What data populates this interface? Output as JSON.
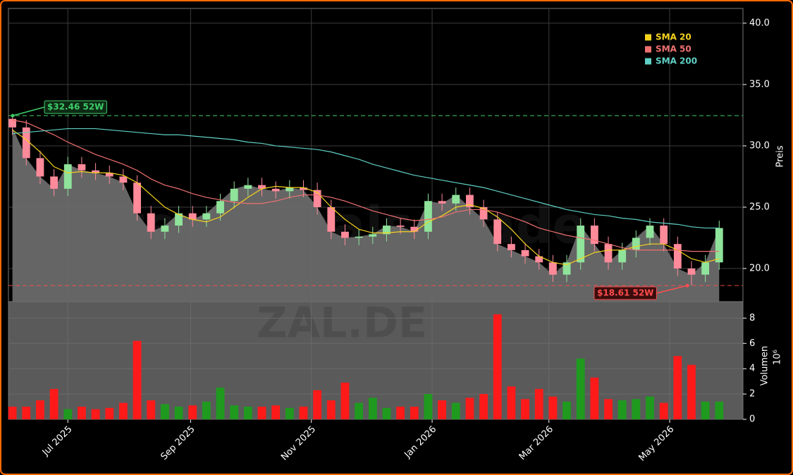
{
  "chart_data": [
    {
      "type": "candlestick",
      "watermark": "forexsignals.trade",
      "ylabel": "Preis",
      "x": [
        2,
        9,
        16,
        23,
        30,
        37,
        44,
        51,
        58,
        65,
        72,
        79,
        86,
        93,
        100,
        107,
        114,
        121,
        128,
        135,
        142,
        149,
        156,
        163,
        170,
        177,
        184,
        191,
        198,
        205,
        212,
        219,
        226,
        233,
        240,
        247,
        254,
        261,
        268,
        275,
        282,
        289,
        296,
        303,
        310,
        317,
        324,
        331,
        338,
        345,
        352,
        359
      ],
      "open": [
        32.2,
        31.5,
        29,
        27.5,
        26.5,
        28.5,
        28,
        27.8,
        27.5,
        27,
        24.5,
        23,
        23.5,
        24.5,
        24,
        24.5,
        25.5,
        26.5,
        26.8,
        26.5,
        26.3,
        26.6,
        26.4,
        25,
        23,
        22.5,
        22.6,
        22.8,
        23.5,
        23.4,
        23,
        25.5,
        25.3,
        26,
        25,
        24,
        22,
        21.5,
        21,
        20.5,
        19.5,
        20.5,
        23.5,
        22,
        20.5,
        21.5,
        22.5,
        23.5,
        22,
        20,
        19.5,
        20.5
      ],
      "high": [
        32.46,
        32.1,
        29.6,
        28.1,
        29.1,
        29.1,
        28.6,
        28.4,
        28.1,
        27.6,
        25.1,
        24.1,
        25.1,
        25.1,
        25.1,
        26.1,
        27.1,
        27.4,
        27.4,
        27.1,
        27.2,
        27.2,
        27,
        25.6,
        23.6,
        23.2,
        23.4,
        24.1,
        24.1,
        24,
        26.1,
        26.1,
        26.6,
        26.6,
        25.6,
        24.6,
        22.6,
        22.1,
        21.6,
        21.1,
        21.1,
        24.1,
        24.1,
        22.6,
        22.1,
        23.1,
        24.1,
        24.1,
        22.6,
        20.6,
        21.1,
        23.9
      ],
      "low": [
        30.9,
        28.4,
        26.9,
        25.9,
        25.9,
        27.4,
        27.2,
        26.9,
        26.4,
        23.9,
        22.4,
        22.4,
        22.9,
        23.4,
        23.4,
        23.9,
        24.9,
        25.9,
        25.9,
        25.7,
        25.7,
        25.8,
        24.4,
        22.4,
        21.9,
        21.9,
        22,
        22.2,
        22.8,
        22.4,
        22.4,
        24.7,
        24.7,
        24.4,
        23.4,
        21.4,
        20.9,
        20.4,
        19.9,
        18.9,
        18.9,
        19.9,
        21.4,
        19.9,
        19.9,
        20.9,
        21.9,
        21.4,
        19.4,
        18.61,
        18.9,
        19.9
      ],
      "close": [
        31.5,
        29,
        27.5,
        26.5,
        28.5,
        28,
        27.8,
        27.5,
        27,
        24.5,
        23,
        23.5,
        24.5,
        24,
        24.5,
        25.5,
        26.5,
        26.8,
        26.5,
        26.3,
        26.6,
        26.4,
        25,
        23,
        22.5,
        22.6,
        22.8,
        23.5,
        23.4,
        23,
        25.5,
        25.3,
        26,
        25,
        24,
        22,
        21.5,
        21,
        20.5,
        19.5,
        20.5,
        23.5,
        22,
        20.5,
        21.5,
        22.5,
        23.5,
        22,
        20,
        19.5,
        20.5,
        23.3
      ],
      "up_color": "#8fe39a",
      "down_color": "#ff8a9a",
      "area_color": "#6a6a6a",
      "series": [
        {
          "name": "SMA 20",
          "color": "#f5d21e",
          "values": [
            31.3,
            30.5,
            29.5,
            28.3,
            27.8,
            27.9,
            27.8,
            27.8,
            27.6,
            27,
            26,
            25,
            24.4,
            24,
            23.8,
            24.2,
            25,
            25.8,
            26.5,
            26.7,
            26.6,
            26.6,
            26.2,
            25,
            24,
            23.2,
            22.9,
            22.9,
            23,
            23,
            23.8,
            24.3,
            25,
            25.2,
            24.9,
            24.2,
            23.2,
            22,
            21,
            20.5,
            20.3,
            20.8,
            21.3,
            21.5,
            21.5,
            21.8,
            22,
            22,
            21.5,
            20.8,
            20.5,
            20.8
          ]
        },
        {
          "name": "SMA 50",
          "color": "#f07070",
          "values": [
            32.1,
            31.9,
            31.4,
            30.9,
            30.3,
            29.8,
            29.3,
            28.9,
            28.5,
            28,
            27.3,
            26.8,
            26.5,
            26.1,
            25.8,
            25.6,
            25.4,
            25.3,
            25.3,
            25.5,
            25.8,
            26,
            26,
            25.8,
            25.5,
            25.1,
            24.7,
            24.4,
            24.1,
            23.9,
            24,
            24.2,
            24.6,
            24.8,
            24.8,
            24.6,
            24.2,
            23.8,
            23.3,
            23,
            22.7,
            22.5,
            22.3,
            22,
            21.7,
            21.5,
            21.5,
            21.5,
            21.5,
            21.4,
            21.4,
            21.4
          ]
        },
        {
          "name": "SMA 200",
          "color": "#5fd0c4",
          "values": [
            31,
            31.1,
            31.2,
            31.3,
            31.4,
            31.4,
            31.4,
            31.3,
            31.2,
            31.1,
            31,
            30.9,
            30.9,
            30.8,
            30.7,
            30.6,
            30.5,
            30.3,
            30.2,
            30,
            29.9,
            29.8,
            29.7,
            29.5,
            29.2,
            28.9,
            28.5,
            28.2,
            27.9,
            27.6,
            27.4,
            27.2,
            27,
            26.8,
            26.6,
            26.3,
            26,
            25.7,
            25.4,
            25.1,
            24.8,
            24.6,
            24.4,
            24.3,
            24.1,
            24,
            23.8,
            23.7,
            23.6,
            23.4,
            23.3,
            23.3
          ]
        }
      ],
      "annotations": [
        {
          "value": 32.46,
          "label": "$32.46 52W",
          "color": "#3ecf6a"
        },
        {
          "value": 18.61,
          "label": "$18.61 52W",
          "color": "#ff4d4d"
        }
      ],
      "xlim": [
        0,
        371
      ],
      "xticks": [
        {
          "value": 30,
          "label": "Jul 2025"
        },
        {
          "value": 92,
          "label": "Sep 2025"
        },
        {
          "value": 153,
          "label": "Nov 2025"
        },
        {
          "value": 214,
          "label": "Jan 2026"
        },
        {
          "value": 273,
          "label": "Mar 2026"
        },
        {
          "value": 334,
          "label": "May 2026"
        }
      ],
      "ylim": [
        17.3,
        41.2
      ],
      "yticks": [
        {
          "value": 20,
          "label": "20.0"
        },
        {
          "value": 25,
          "label": "25.0"
        },
        {
          "value": 30,
          "label": "30.0"
        },
        {
          "value": 35,
          "label": "35.0"
        },
        {
          "value": 40,
          "label": "40.0"
        }
      ],
      "grid": true,
      "legend": "upper right"
    },
    {
      "type": "bar",
      "watermark": "ZAL.DE",
      "ylabel": "Volumen",
      "ylabel_unit": "10⁶",
      "up_color": "#1f9a1f",
      "down_color": "#ff1a1a",
      "background": "#5a5a5a",
      "values": [
        1,
        1,
        1.5,
        2.4,
        0.8,
        1,
        0.8,
        0.9,
        1.3,
        6.2,
        1.5,
        1.2,
        1,
        1.1,
        1.4,
        2.5,
        1.1,
        1,
        1,
        1.1,
        0.9,
        1,
        2.3,
        1.5,
        2.9,
        1.3,
        1.7,
        0.9,
        1,
        1,
        2,
        1.5,
        1.3,
        1.7,
        2,
        8.3,
        2.6,
        1.6,
        2.4,
        1.8,
        1.4,
        4.8,
        3.3,
        1.6,
        1.5,
        1.6,
        1.8,
        1.3,
        5,
        4.3,
        1.4,
        1.4
      ],
      "ylim": [
        0,
        9.3
      ],
      "yticks": [
        0,
        2,
        4,
        6,
        8
      ],
      "grid": true
    }
  ]
}
